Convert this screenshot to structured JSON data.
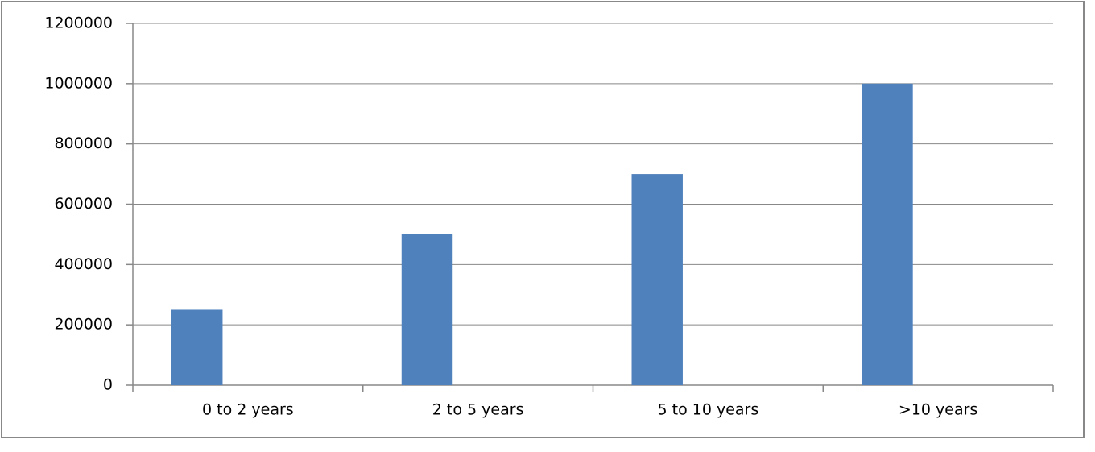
{
  "chart_data": {
    "type": "bar",
    "categories": [
      "0 to 2 years",
      "2 to 5 years",
      "5 to 10 years",
      ">10 years"
    ],
    "values": [
      250000,
      500000,
      700000,
      1000000
    ],
    "color": "#4f81bd",
    "ylim": [
      0,
      1200000
    ],
    "yticks": [
      0,
      200000,
      400000,
      600000,
      800000,
      1000000,
      1200000
    ],
    "grid": true
  }
}
